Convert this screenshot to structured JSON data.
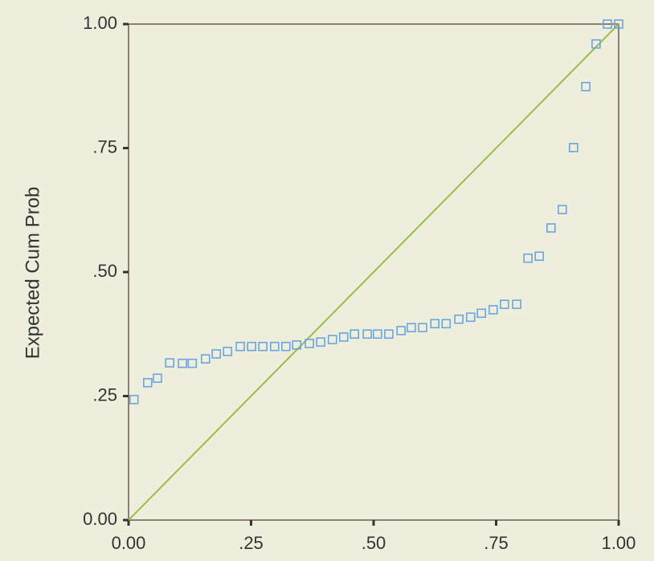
{
  "chart_data": {
    "type": "scatter",
    "y_label": "Expected Cum Prob",
    "x": [
      0.011,
      0.039,
      0.059,
      0.084,
      0.11,
      0.13,
      0.157,
      0.179,
      0.202,
      0.228,
      0.251,
      0.274,
      0.298,
      0.321,
      0.343,
      0.369,
      0.392,
      0.416,
      0.439,
      0.461,
      0.487,
      0.508,
      0.531,
      0.556,
      0.577,
      0.6,
      0.625,
      0.648,
      0.674,
      0.698,
      0.72,
      0.744,
      0.767,
      0.792,
      0.815,
      0.838,
      0.862,
      0.885,
      0.908,
      0.933,
      0.954,
      0.977,
      1.0
    ],
    "values": [
      0.243,
      0.277,
      0.286,
      0.317,
      0.316,
      0.316,
      0.325,
      0.335,
      0.34,
      0.35,
      0.35,
      0.35,
      0.35,
      0.35,
      0.353,
      0.356,
      0.359,
      0.364,
      0.369,
      0.375,
      0.375,
      0.375,
      0.375,
      0.382,
      0.388,
      0.388,
      0.396,
      0.396,
      0.405,
      0.409,
      0.417,
      0.424,
      0.435,
      0.435,
      0.528,
      0.532,
      0.589,
      0.626,
      0.751,
      0.874,
      0.96,
      1.0,
      1.0
    ],
    "color": "#6fa3dc",
    "reference_line_color": "#9cbb48",
    "xlim": [
      0,
      1
    ],
    "ylim": [
      0,
      1
    ],
    "xticks": [
      {
        "value": 0,
        "label": "0.00"
      },
      {
        "value": 0.25,
        "label": ".25"
      },
      {
        "value": 0.5,
        "label": ".50"
      },
      {
        "value": 0.75,
        "label": ".75"
      },
      {
        "value": 1,
        "label": "1.00"
      }
    ],
    "yticks": [
      {
        "value": 0,
        "label": "0.00"
      },
      {
        "value": 0.25,
        "label": ".25"
      },
      {
        "value": 0.5,
        "label": ".50"
      },
      {
        "value": 0.75,
        "label": ".75"
      },
      {
        "value": 1,
        "label": "1.00"
      }
    ]
  }
}
